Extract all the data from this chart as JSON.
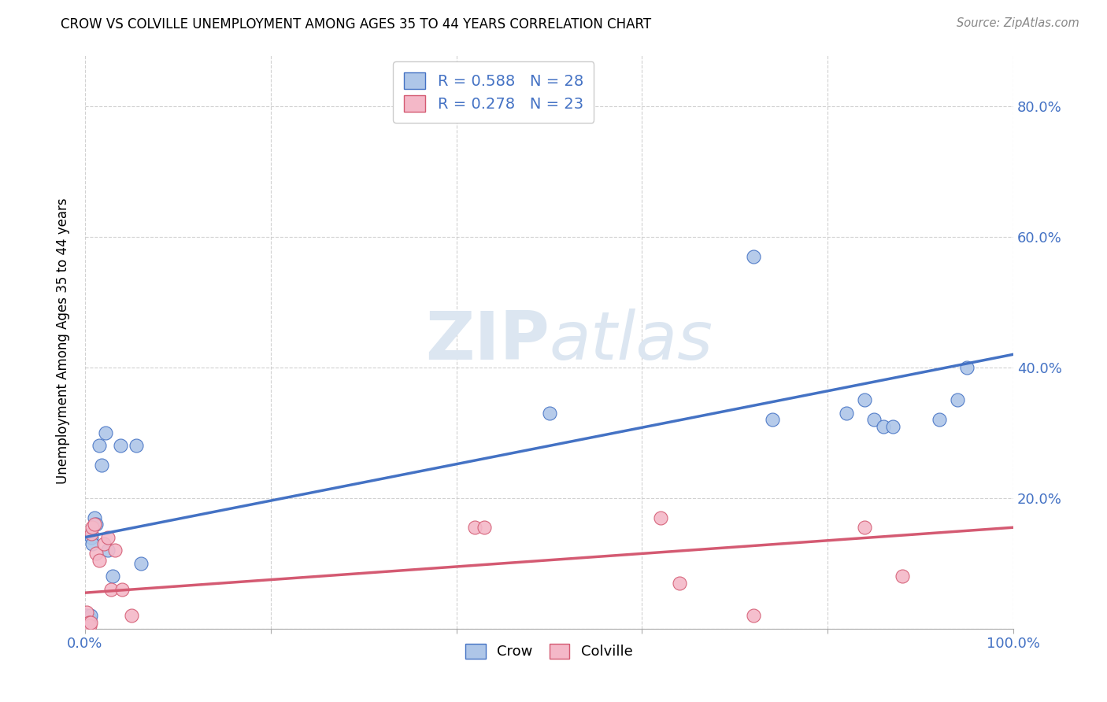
{
  "title": "CROW VS COLVILLE UNEMPLOYMENT AMONG AGES 35 TO 44 YEARS CORRELATION CHART",
  "source": "Source: ZipAtlas.com",
  "ylabel": "Unemployment Among Ages 35 to 44 years",
  "crow_R": "0.588",
  "crow_N": "28",
  "colville_R": "0.278",
  "colville_N": "23",
  "crow_color": "#aec6e8",
  "crow_line_color": "#4472c4",
  "colville_color": "#f4b8c8",
  "colville_line_color": "#d45a72",
  "watermark_color": "#dce6f1",
  "background_color": "#ffffff",
  "crow_x": [
    0.002,
    0.003,
    0.004,
    0.005,
    0.006,
    0.007,
    0.008,
    0.01,
    0.012,
    0.015,
    0.018,
    0.022,
    0.025,
    0.03,
    0.038,
    0.055,
    0.06,
    0.5,
    0.72,
    0.74,
    0.82,
    0.84,
    0.85,
    0.86,
    0.87,
    0.92,
    0.94,
    0.95
  ],
  "crow_y": [
    0.02,
    0.01,
    0.01,
    0.015,
    0.02,
    0.14,
    0.13,
    0.17,
    0.16,
    0.28,
    0.25,
    0.3,
    0.12,
    0.08,
    0.28,
    0.28,
    0.1,
    0.33,
    0.57,
    0.32,
    0.33,
    0.35,
    0.32,
    0.31,
    0.31,
    0.32,
    0.35,
    0.4
  ],
  "colville_x": [
    0.002,
    0.003,
    0.004,
    0.005,
    0.006,
    0.007,
    0.008,
    0.01,
    0.012,
    0.015,
    0.02,
    0.025,
    0.028,
    0.032,
    0.04,
    0.05,
    0.42,
    0.43,
    0.62,
    0.64,
    0.72,
    0.84,
    0.88
  ],
  "colville_y": [
    0.025,
    0.005,
    0.01,
    0.005,
    0.01,
    0.145,
    0.155,
    0.16,
    0.115,
    0.105,
    0.13,
    0.14,
    0.06,
    0.12,
    0.06,
    0.02,
    0.155,
    0.155,
    0.17,
    0.07,
    0.02,
    0.155,
    0.08
  ],
  "xlim": [
    0.0,
    1.0
  ],
  "ylim": [
    0.0,
    0.88
  ],
  "xticks": [
    0.0,
    0.2,
    0.4,
    0.6,
    0.8,
    1.0
  ],
  "xticklabels": [
    "0.0%",
    "",
    "",
    "",
    "",
    "100.0%"
  ],
  "yticks": [
    0.0,
    0.2,
    0.4,
    0.6,
    0.8
  ],
  "yticklabels": [
    "",
    "20.0%",
    "40.0%",
    "60.0%",
    "80.0%"
  ],
  "crow_trendline": [
    [
      0.0,
      0.14
    ],
    [
      1.0,
      0.42
    ]
  ],
  "colville_trendline": [
    [
      0.0,
      0.055
    ],
    [
      1.0,
      0.155
    ]
  ],
  "marker_size": 150
}
